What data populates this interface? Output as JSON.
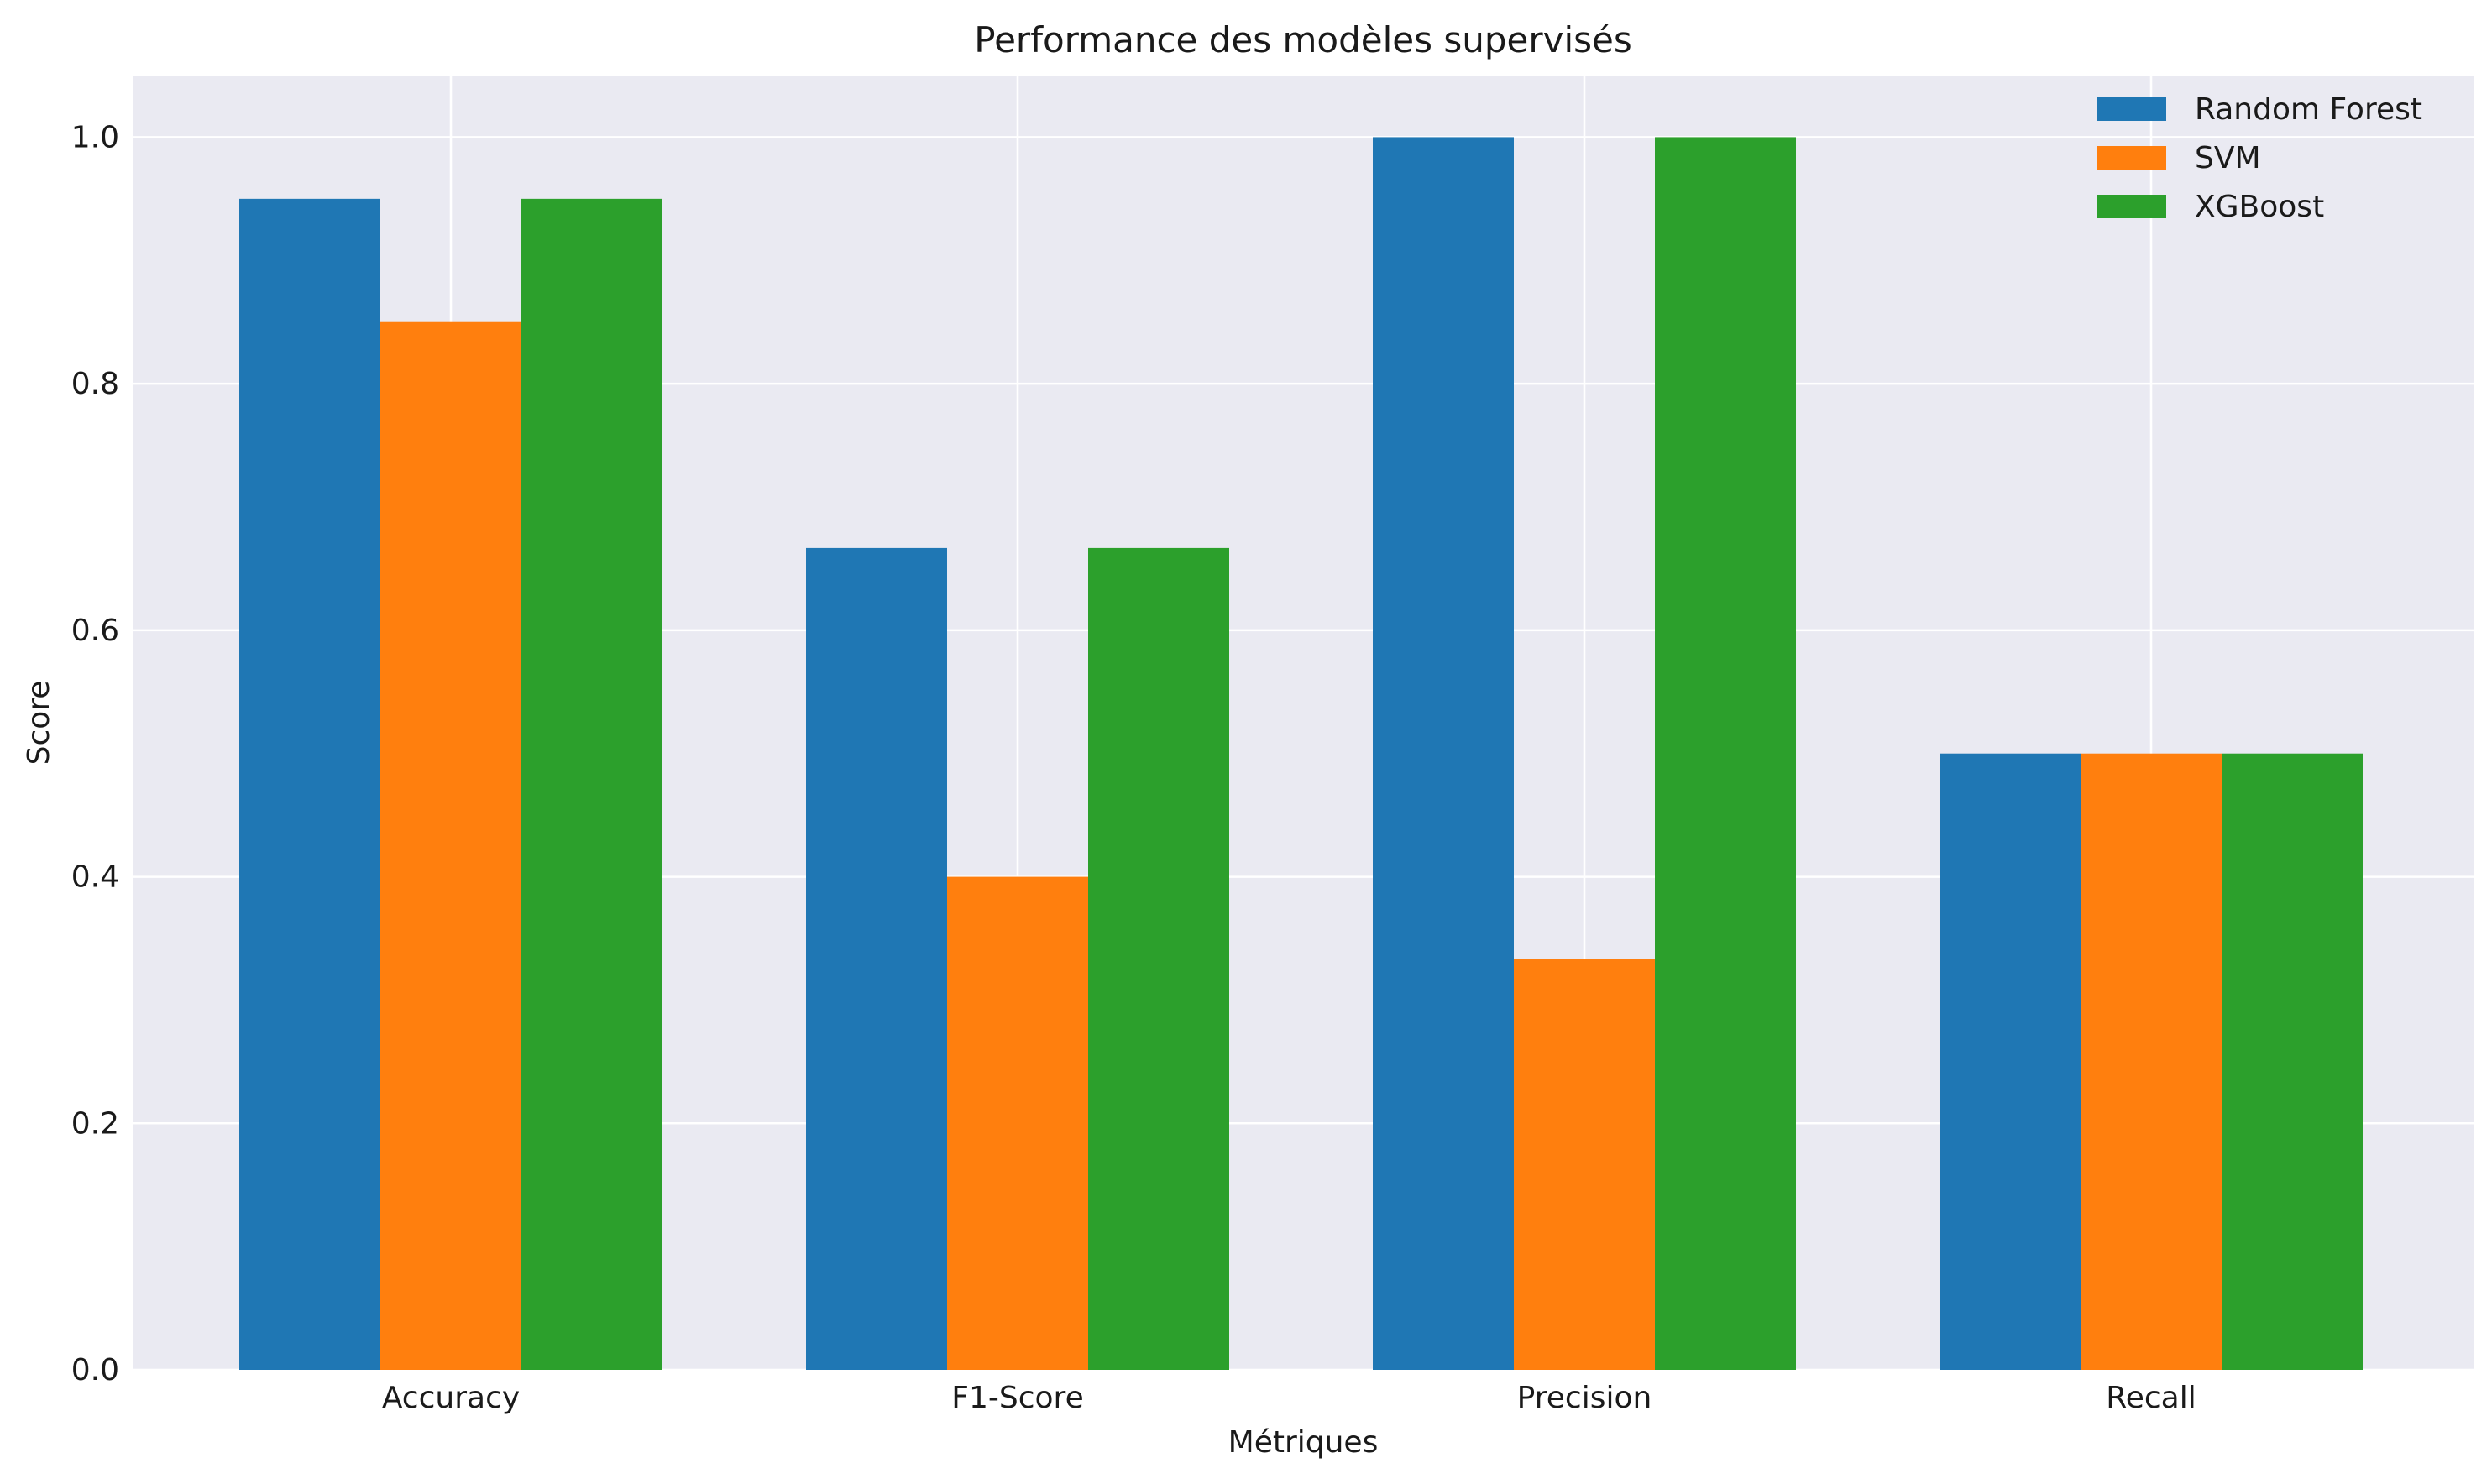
{
  "chart_data": {
    "type": "bar",
    "title": "Performance des modèles supervisés",
    "xlabel": "Métriques",
    "ylabel": "Score",
    "categories": [
      "Accuracy",
      "F1-Score",
      "Precision",
      "Recall"
    ],
    "series": [
      {
        "name": "Random Forest",
        "color": "#1f77b4",
        "values": [
          0.95,
          0.6667,
          1.0,
          0.5
        ]
      },
      {
        "name": "SVM",
        "color": "#ff7f0e",
        "values": [
          0.85,
          0.4,
          0.3333,
          0.5
        ]
      },
      {
        "name": "XGBoost",
        "color": "#2ca02c",
        "values": [
          0.95,
          0.6667,
          1.0,
          0.5
        ]
      }
    ],
    "ylim": [
      0,
      1.05
    ],
    "yticks": [
      "0.0",
      "0.2",
      "0.4",
      "0.6",
      "0.8",
      "1.0"
    ],
    "grid": true,
    "legend_position": "top-right",
    "plot_background": "#eaeaf2",
    "grid_color": "#ffffff"
  }
}
